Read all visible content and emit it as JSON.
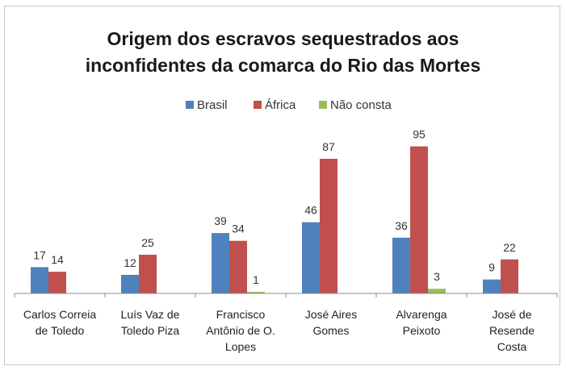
{
  "chart_data": {
    "type": "bar",
    "title": "Origem dos escravos sequestrados aos inconfidentes da comarca do Rio das Mortes",
    "title_lines": [
      "Origem dos escravos sequestrados aos",
      "inconfidentes da comarca do Rio das Mortes"
    ],
    "categories": [
      [
        "Carlos Correia",
        "de Toledo"
      ],
      [
        "Luís Vaz de",
        "Toledo Piza"
      ],
      [
        "Francisco",
        "Antônio de O.",
        "Lopes"
      ],
      [
        "José Aires",
        "Gomes"
      ],
      [
        "Alvarenga",
        "Peixoto"
      ],
      [
        "José  de",
        "Resende",
        "Costa"
      ]
    ],
    "series": [
      {
        "name": "Brasil",
        "color": "#4f81bd",
        "values": [
          17,
          12,
          39,
          46,
          36,
          9
        ]
      },
      {
        "name": "África",
        "color": "#c0504d",
        "values": [
          14,
          25,
          34,
          87,
          95,
          22
        ]
      },
      {
        "name": "Não consta",
        "color": "#9bbb59",
        "values": [
          null,
          null,
          1,
          null,
          3,
          null
        ]
      }
    ],
    "ylim": [
      0,
      100
    ],
    "grid": false,
    "legend_position": "top",
    "xlabel": "",
    "ylabel": ""
  }
}
